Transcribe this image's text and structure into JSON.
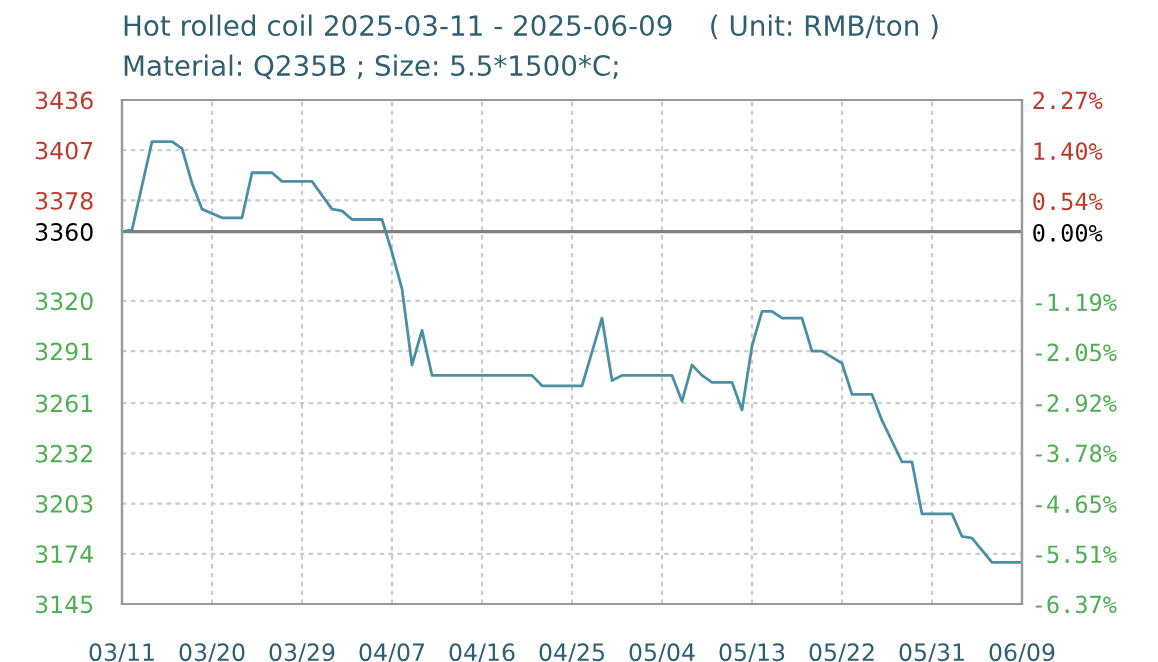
{
  "chart_data": {
    "type": "line",
    "title": "Hot rolled coil 2025-03-11 - 2025-06-09    ( Unit: RMB/ton )",
    "subtitle": "Material: Q235B ; Size: 5.5*1500*C;",
    "x": [
      "2025-03-11",
      "2025-03-12",
      "2025-03-14",
      "2025-03-16",
      "2025-03-17",
      "2025-03-18",
      "2025-03-19",
      "2025-03-21",
      "2025-03-23",
      "2025-03-24",
      "2025-03-26",
      "2025-03-27",
      "2025-03-30",
      "2025-04-01",
      "2025-04-02",
      "2025-04-03",
      "2025-04-06",
      "2025-04-07",
      "2025-04-08",
      "2025-04-09",
      "2025-04-10",
      "2025-04-11",
      "2025-04-21",
      "2025-04-22",
      "2025-04-26",
      "2025-04-28",
      "2025-04-29",
      "2025-04-30",
      "2025-05-05",
      "2025-05-06",
      "2025-05-07",
      "2025-05-08",
      "2025-05-09",
      "2025-05-11",
      "2025-05-12",
      "2025-05-13",
      "2025-05-14",
      "2025-05-15",
      "2025-05-16",
      "2025-05-18",
      "2025-05-19",
      "2025-05-20",
      "2025-05-22",
      "2025-05-23",
      "2025-05-25",
      "2025-05-26",
      "2025-05-28",
      "2025-05-29",
      "2025-05-30",
      "2025-06-02",
      "2025-06-03",
      "2025-06-04",
      "2025-06-06",
      "2025-06-09"
    ],
    "series": [
      {
        "color": "#4a8fa6",
        "values": [
          3360,
          3361,
          3412,
          3412,
          3408,
          3388,
          3373,
          3368,
          3368,
          3394,
          3394,
          3389,
          3389,
          3373,
          3372,
          3367,
          3367,
          3348,
          3327,
          3283,
          3303,
          3277,
          3277,
          3271,
          3271,
          3310,
          3274,
          3277,
          3277,
          3262,
          3283,
          3277,
          3273,
          3273,
          3257,
          3294,
          3314,
          3314,
          3310,
          3310,
          3291,
          3291,
          3284,
          3266,
          3266,
          3251,
          3227,
          3227,
          3197,
          3197,
          3184,
          3183,
          3169,
          3169
        ]
      }
    ],
    "xlim": [
      "2025-03-11",
      "2025-06-09"
    ],
    "xticks": [
      {
        "value": "2025-03-11",
        "label": "03/11"
      },
      {
        "value": "2025-03-20",
        "label": "03/20"
      },
      {
        "value": "2025-03-29",
        "label": "03/29"
      },
      {
        "value": "2025-04-07",
        "label": "04/07"
      },
      {
        "value": "2025-04-16",
        "label": "04/16"
      },
      {
        "value": "2025-04-25",
        "label": "04/25"
      },
      {
        "value": "2025-05-04",
        "label": "05/04"
      },
      {
        "value": "2025-05-13",
        "label": "05/13"
      },
      {
        "value": "2025-05-22",
        "label": "05/22"
      },
      {
        "value": "2025-05-31",
        "label": "05/31"
      },
      {
        "value": "2025-06-09",
        "label": "06/09"
      }
    ],
    "ylim": [
      3145,
      3436
    ],
    "yticks": [
      3436,
      3407,
      3378,
      3360,
      3320,
      3291,
      3261,
      3232,
      3203,
      3174,
      3145
    ],
    "y2lim": [
      -6.37,
      2.27
    ],
    "y2ticks": [
      {
        "value": 2.27,
        "label": "2.27%"
      },
      {
        "value": 1.4,
        "label": "1.40%"
      },
      {
        "value": 0.54,
        "label": "0.54%"
      },
      {
        "value": 0,
        "label": "0.00%"
      },
      {
        "value": -1.19,
        "label": "-1.19%"
      },
      {
        "value": -2.05,
        "label": "-2.05%"
      },
      {
        "value": -2.92,
        "label": "-2.92%"
      },
      {
        "value": -3.78,
        "label": "-3.78%"
      },
      {
        "value": -4.65,
        "label": "-4.65%"
      },
      {
        "value": -5.51,
        "label": "-5.51%"
      },
      {
        "value": -6.37,
        "label": "-6.37%"
      }
    ],
    "ref_lines": [
      {
        "axis": "y",
        "value": 3360,
        "color": "#808080"
      }
    ],
    "grid": true,
    "legend": false
  }
}
